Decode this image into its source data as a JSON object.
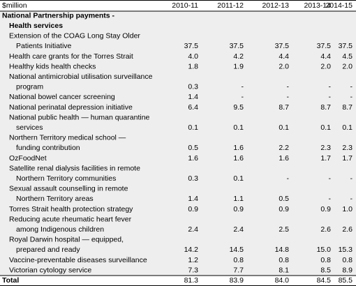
{
  "table": {
    "header": [
      "$million",
      "2010-11",
      "2011-12",
      "2012-13",
      "2013-14",
      "2014-15"
    ],
    "heading": [
      "National Partnership payments -",
      "Health services"
    ],
    "rows": [
      {
        "label": [
          "Extension of the COAG Long Stay Older",
          "Patients Initiative"
        ],
        "values": [
          "37.5",
          "37.5",
          "37.5",
          "37.5",
          "37.5"
        ]
      },
      {
        "label": [
          "Health care grants for the Torres Strait"
        ],
        "values": [
          "4.0",
          "4.2",
          "4.4",
          "4.4",
          "4.5"
        ]
      },
      {
        "label": [
          "Healthy kids health checks"
        ],
        "values": [
          "1.8",
          "1.9",
          "2.0",
          "2.0",
          "2.0"
        ]
      },
      {
        "label": [
          "National antimicrobial utilisation surveillance",
          "program"
        ],
        "values": [
          "0.3",
          "-",
          "-",
          "-",
          "-"
        ]
      },
      {
        "label": [
          "National bowel cancer screening"
        ],
        "values": [
          "1.4",
          "-",
          "-",
          "-",
          "-"
        ]
      },
      {
        "label": [
          "National perinatal depression initiative"
        ],
        "values": [
          "6.4",
          "9.5",
          "8.7",
          "8.7",
          "8.7"
        ]
      },
      {
        "label": [
          "National public health — human quarantine",
          "services"
        ],
        "values": [
          "0.1",
          "0.1",
          "0.1",
          "0.1",
          "0.1"
        ]
      },
      {
        "label": [
          "Northern Territory medical school —",
          "funding contribution"
        ],
        "values": [
          "0.5",
          "1.6",
          "2.2",
          "2.3",
          "2.3"
        ]
      },
      {
        "label": [
          "OzFoodNet"
        ],
        "values": [
          "1.6",
          "1.6",
          "1.6",
          "1.7",
          "1.7"
        ]
      },
      {
        "label": [
          "Satellite renal dialysis facilities in remote",
          "Northern Territory communities"
        ],
        "values": [
          "0.3",
          "0.1",
          "-",
          "-",
          "-"
        ]
      },
      {
        "label": [
          "Sexual assault counselling in remote",
          "Northern Territory areas"
        ],
        "values": [
          "1.4",
          "1.1",
          "0.5",
          "-",
          "-"
        ]
      },
      {
        "label": [
          "Torres Strait health protection strategy"
        ],
        "values": [
          "0.9",
          "0.9",
          "0.9",
          "0.9",
          "1.0"
        ]
      },
      {
        "label": [
          "Reducing acute rheumatic heart fever",
          "among Indigenous children"
        ],
        "values": [
          "2.4",
          "2.4",
          "2.5",
          "2.6",
          "2.6"
        ]
      },
      {
        "label": [
          "Royal Darwin hospital — equipped,",
          "prepared and ready"
        ],
        "values": [
          "14.2",
          "14.5",
          "14.8",
          "15.0",
          "15.3"
        ]
      },
      {
        "label": [
          "Vaccine-preventable diseases surveillance"
        ],
        "values": [
          "1.2",
          "0.8",
          "0.8",
          "0.8",
          "0.8"
        ]
      },
      {
        "label": [
          "Victorian cytology service"
        ],
        "values": [
          "7.3",
          "7.7",
          "8.1",
          "8.5",
          "8.9"
        ]
      }
    ],
    "total": {
      "label": "Total",
      "values": [
        "81.3",
        "83.9",
        "84.0",
        "84.5",
        "85.5"
      ]
    }
  }
}
